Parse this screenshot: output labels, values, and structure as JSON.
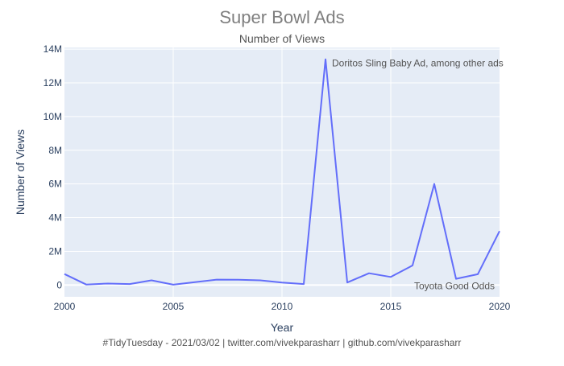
{
  "chart_data": {
    "type": "line",
    "title": "Super Bowl Ads",
    "subtitle": "Number of Views",
    "xlabel": "Year",
    "ylabel": "Number of Views",
    "caption": "#TidyTuesday - 2021/03/02 | twitter.com/vivekparasharr | github.com/vivekparasharr",
    "xlim": [
      2000,
      2020
    ],
    "ylim": [
      -700000,
      14100000
    ],
    "x_ticks": [
      2000,
      2005,
      2010,
      2015,
      2020
    ],
    "x_tick_labels": [
      "2000",
      "2005",
      "2010",
      "2015",
      "2020"
    ],
    "y_ticks": [
      0,
      2000000,
      4000000,
      6000000,
      8000000,
      10000000,
      12000000,
      14000000
    ],
    "y_tick_labels": [
      "0",
      "2M",
      "4M",
      "6M",
      "8M",
      "10M",
      "12M",
      "14M"
    ],
    "grid": true,
    "legend": "none",
    "colors": {
      "line": "#636efa",
      "plot_bg": "#e5ecf6",
      "grid": "#ffffff",
      "title": "#7f7f7f",
      "axis_text": "#2a3f5f",
      "annotation": "#555555"
    },
    "series": [
      {
        "x": [
          2000,
          2001,
          2002,
          2003,
          2004,
          2005,
          2006,
          2007,
          2008,
          2009,
          2010,
          2011,
          2012,
          2013,
          2014,
          2015,
          2016,
          2017,
          2018,
          2019,
          2020
        ],
        "y": [
          650000,
          30000,
          90000,
          60000,
          280000,
          20000,
          170000,
          320000,
          310000,
          280000,
          150000,
          60000,
          13400000,
          150000,
          700000,
          480000,
          1160000,
          6000000,
          370000,
          640000,
          3200000
        ]
      }
    ],
    "annotations": [
      {
        "x": 2012,
        "y": 13400000,
        "text": "Doritos Sling Baby Ad, among other ads"
      },
      {
        "x": 2020,
        "y": 0,
        "text": "Toyota Good Odds"
      }
    ]
  }
}
